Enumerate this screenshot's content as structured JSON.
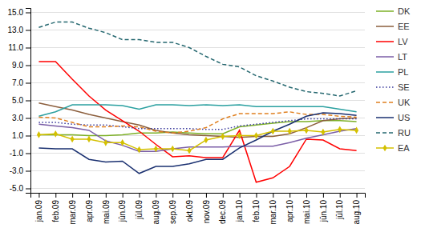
{
  "chart_data": {
    "type": "line",
    "categories": [
      "jan.09",
      "feb.09",
      "mar.09",
      "apr.09",
      "mai.09",
      "jūn.09",
      "jūl.09",
      "aug.09",
      "sep.09",
      "okt.09",
      "nov.09",
      "dec.09",
      "jan.10",
      "feb.10",
      "mar.10",
      "apr.10",
      "mai.10",
      "jūn.10",
      "jūl.10",
      "aug.10"
    ],
    "series": [
      {
        "name": "DK",
        "color": "#7DB027",
        "line_style": "solid",
        "values": [
          1.1,
          1.1,
          1.1,
          1.0,
          1.0,
          1.1,
          1.3,
          1.3,
          1.4,
          1.3,
          1.2,
          1.2,
          2.0,
          2.2,
          2.4,
          2.6,
          2.6,
          2.7,
          2.7,
          2.6
        ]
      },
      {
        "name": "EE",
        "color": "#8B5E3C",
        "line_style": "solid",
        "values": [
          4.7,
          4.3,
          3.9,
          3.4,
          3.0,
          2.6,
          2.2,
          1.6,
          1.3,
          1.1,
          1.0,
          0.9,
          0.8,
          0.9,
          0.9,
          1.2,
          1.9,
          2.7,
          2.9,
          3.0
        ]
      },
      {
        "name": "LV",
        "color": "#FF0000",
        "line_style": "solid",
        "values": [
          9.4,
          9.4,
          7.4,
          5.5,
          3.9,
          2.7,
          1.5,
          0.0,
          -1.4,
          -1.3,
          -1.5,
          -1.5,
          1.6,
          -4.3,
          -3.8,
          -2.5,
          0.6,
          0.5,
          -0.5,
          -0.7
        ]
      },
      {
        "name": "LT",
        "color": "#7B5EA7",
        "line_style": "solid",
        "values": [
          2.3,
          2.1,
          1.9,
          1.6,
          0.4,
          -0.1,
          -0.8,
          -0.8,
          -0.5,
          -0.3,
          -0.3,
          -0.3,
          -0.2,
          -0.2,
          -0.2,
          0.2,
          0.7,
          1.1,
          1.5,
          1.8
        ]
      },
      {
        "name": "PL",
        "color": "#2BA0A0",
        "line_style": "solid",
        "values": [
          3.2,
          3.7,
          4.5,
          4.5,
          4.5,
          4.4,
          4.0,
          4.5,
          4.5,
          4.4,
          4.5,
          4.4,
          4.5,
          4.3,
          4.3,
          4.3,
          4.3,
          4.3,
          4.0,
          3.7
        ]
      },
      {
        "name": "SE",
        "color": "#3A3A9C",
        "line_style": "dotted",
        "values": [
          2.5,
          2.5,
          2.3,
          2.2,
          2.2,
          2.0,
          1.8,
          1.8,
          1.8,
          1.8,
          1.7,
          1.7,
          2.1,
          2.3,
          2.5,
          2.7,
          2.9,
          2.9,
          2.9,
          2.9
        ]
      },
      {
        "name": "UK",
        "color": "#E08020",
        "line_style": "dashed",
        "values": [
          3.1,
          3.0,
          2.5,
          2.0,
          2.0,
          2.1,
          2.0,
          1.5,
          1.3,
          1.5,
          1.9,
          2.9,
          3.5,
          3.5,
          3.5,
          3.7,
          3.4,
          3.4,
          3.2,
          3.1
        ]
      },
      {
        "name": "US",
        "color": "#1A3070",
        "line_style": "solid",
        "values": [
          -0.4,
          -0.5,
          -0.5,
          -1.7,
          -2.0,
          -1.9,
          -3.3,
          -2.5,
          -2.5,
          -2.2,
          -1.7,
          -1.7,
          -0.4,
          0.5,
          1.5,
          2.3,
          3.2,
          3.6,
          3.5,
          3.3
        ]
      },
      {
        "name": "RU",
        "color": "#266870",
        "line_style": "dashed",
        "values": [
          13.3,
          13.9,
          13.9,
          13.2,
          12.7,
          11.9,
          11.9,
          11.6,
          11.6,
          11.0,
          10.0,
          9.1,
          8.8,
          7.8,
          7.2,
          6.5,
          6.0,
          5.8,
          5.5,
          6.1
        ]
      },
      {
        "name": "EA",
        "color": "#D4C000",
        "line_style": "solid",
        "marker": "diamond",
        "values": [
          1.1,
          1.2,
          0.6,
          0.6,
          0.2,
          0.2,
          -0.6,
          -0.5,
          -0.5,
          -0.7,
          0.5,
          0.9,
          1.0,
          1.0,
          1.5,
          1.5,
          1.6,
          1.4,
          1.7,
          1.6
        ]
      }
    ],
    "ylim": [
      -5.5,
      15.5
    ],
    "yticks": [
      {
        "value": 15,
        "label": "15.0"
      },
      {
        "value": 13,
        "label": "13.0"
      },
      {
        "value": 11,
        "label": "11.0"
      },
      {
        "value": 9,
        "label": "9.0"
      },
      {
        "value": 7,
        "label": "7.0"
      },
      {
        "value": 5,
        "label": "5.0"
      },
      {
        "value": 3,
        "label": "3.0"
      },
      {
        "value": 1,
        "label": "1.0"
      },
      {
        "value": -1,
        "label": "-1.0"
      },
      {
        "value": -3,
        "label": "-3.0"
      },
      {
        "value": -5,
        "label": "-5.0"
      }
    ],
    "grid": true,
    "legend": "right"
  }
}
